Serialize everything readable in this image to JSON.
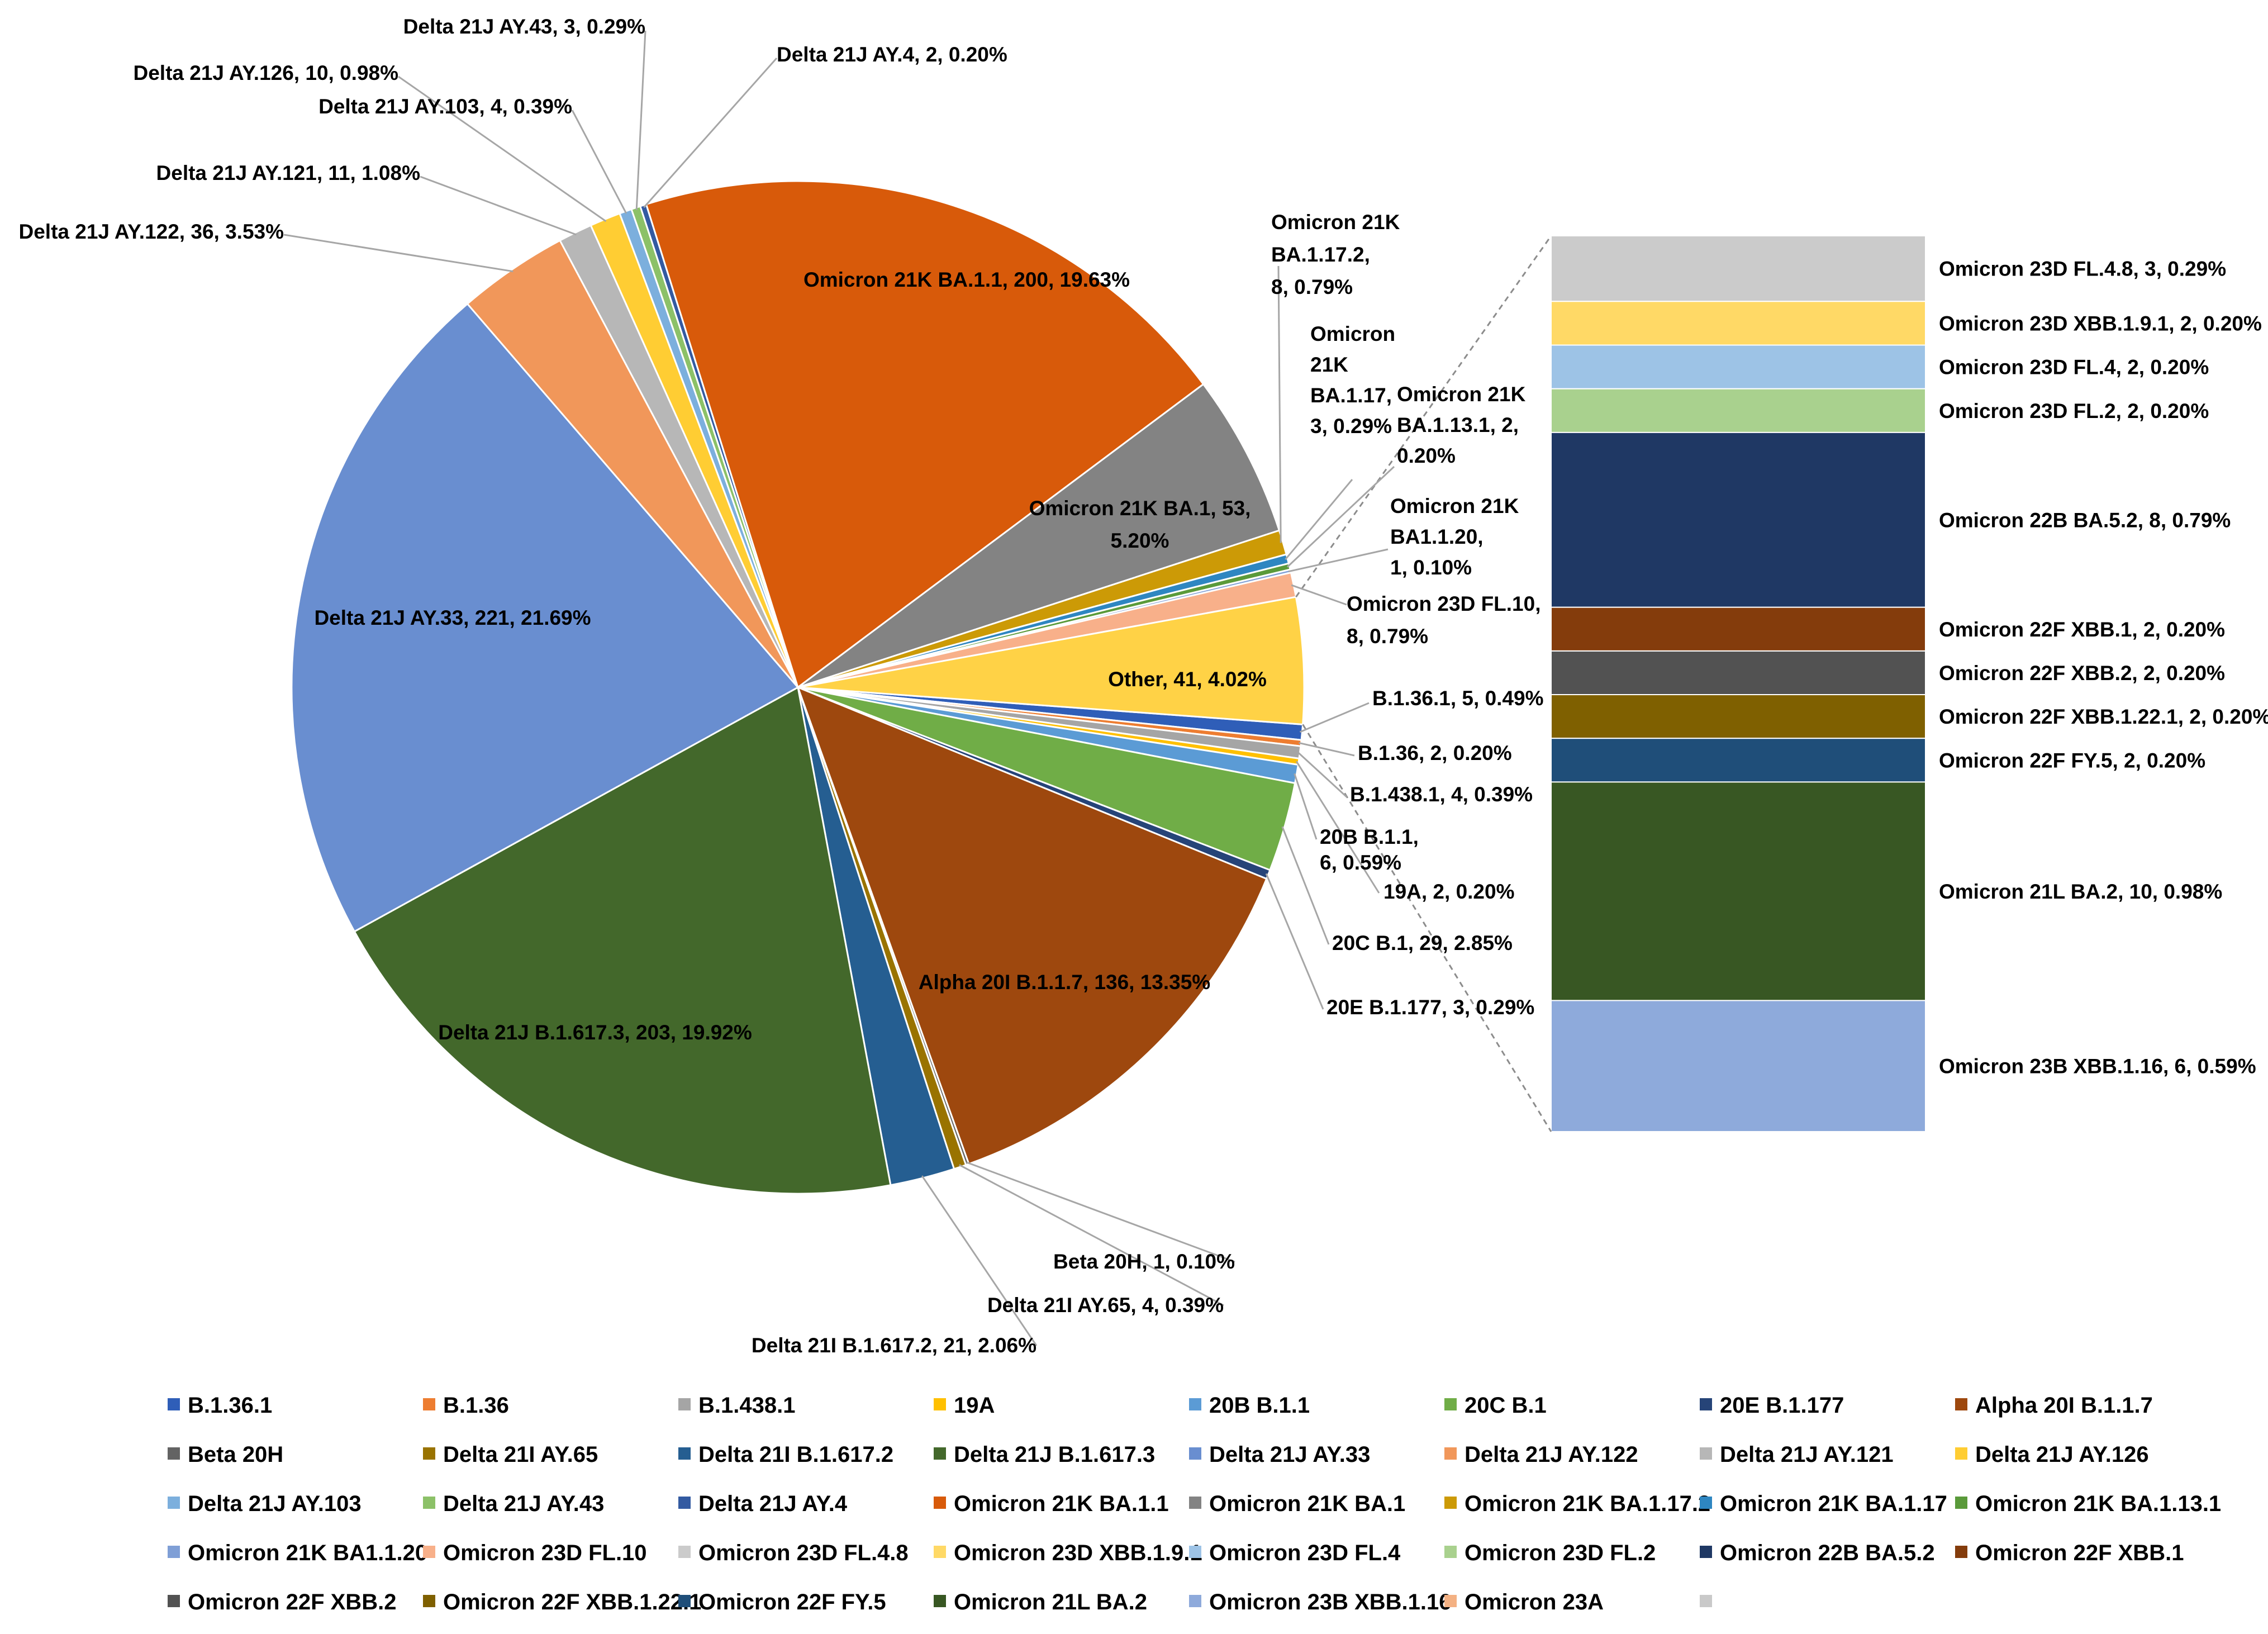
{
  "chart_data": {
    "type": "pie",
    "subtype": "pie-of-pie (bar of pie)",
    "title": "",
    "units": "count, percent",
    "slices": [
      {
        "name": "B.1.36.1",
        "value": 5,
        "pct": "0.49%",
        "label": "B.1.36.1, 5, 0.49%",
        "color": "#2f5eb8"
      },
      {
        "name": "B.1.36",
        "value": 2,
        "pct": "0.20%",
        "label": "B.1.36, 2, 0.20%",
        "color": "#ed7d31"
      },
      {
        "name": "B.1.438.1",
        "value": 4,
        "pct": "0.39%",
        "label": "B.1.438.1, 4, 0.39%",
        "color": "#a5a5a5"
      },
      {
        "name": "19A",
        "value": 2,
        "pct": "0.20%",
        "label": "19A, 2, 0.20%",
        "color": "#ffc000"
      },
      {
        "name": "20B B.1.1",
        "value": 6,
        "pct": "0.59%",
        "label": "20B B.1.1, 6, 0.59%",
        "color": "#5b9bd5"
      },
      {
        "name": "20C B.1",
        "value": 29,
        "pct": "2.85%",
        "label": "20C B.1, 29, 2.85%",
        "color": "#70ad47"
      },
      {
        "name": "20E B.1.177",
        "value": 3,
        "pct": "0.29%",
        "label": "20E B.1.177, 3, 0.29%",
        "color": "#264478"
      },
      {
        "name": "Alpha 20I B.1.1.7",
        "value": 136,
        "pct": "13.35%",
        "label": "Alpha 20I B.1.1.7, 136, 13.35%",
        "color": "#9e480e"
      },
      {
        "name": "Beta 20H",
        "value": 1,
        "pct": "0.10%",
        "label": "Beta 20H, 1, 0.10%",
        "color": "#636363"
      },
      {
        "name": "Delta 21I AY.65",
        "value": 4,
        "pct": "0.39%",
        "label": "Delta 21I AY.65, 4, 0.39%",
        "color": "#997300"
      },
      {
        "name": "Delta 21I B.1.617.2",
        "value": 21,
        "pct": "2.06%",
        "label": "Delta 21I B.1.617.2, 21, 2.06%",
        "color": "#255e91"
      },
      {
        "name": "Delta 21J B.1.617.3",
        "value": 203,
        "pct": "19.92%",
        "label": "Delta 21J B.1.617.3, 203, 19.92%",
        "color": "#43682b"
      },
      {
        "name": "Delta 21J AY.33",
        "value": 221,
        "pct": "21.69%",
        "label": "Delta 21J AY.33, 221, 21.69%",
        "color": "#698ed0"
      },
      {
        "name": "Delta 21J AY.122",
        "value": 36,
        "pct": "3.53%",
        "label": "Delta 21J AY.122, 36, 3.53%",
        "color": "#f1975a"
      },
      {
        "name": "Delta 21J AY.121",
        "value": 11,
        "pct": "1.08%",
        "label": "Delta 21J AY.121, 11, 1.08%",
        "color": "#b7b7b7"
      },
      {
        "name": "Delta 21J AY.126",
        "value": 10,
        "pct": "0.98%",
        "label": "Delta 21J AY.126, 10, 0.98%",
        "color": "#ffcd33"
      },
      {
        "name": "Delta 21J AY.103",
        "value": 4,
        "pct": "0.39%",
        "label": "Delta 21J AY.103, 4, 0.39%",
        "color": "#7cafdd"
      },
      {
        "name": "Delta 21J AY.43",
        "value": 3,
        "pct": "0.29%",
        "label": "Delta 21J AY.43, 3, 0.29%",
        "color": "#8cc168"
      },
      {
        "name": "Delta 21J AY.4",
        "value": 2,
        "pct": "0.20%",
        "label": "Delta 21J AY.4, 2, 0.20%",
        "color": "#335aa1"
      },
      {
        "name": "Omicron 21K BA.1.1",
        "value": 200,
        "pct": "19.63%",
        "label": "Omicron 21K BA.1.1, 200, 19.63%",
        "color": "#d85a0a"
      },
      {
        "name": "Omicron 21K BA.1",
        "value": 53,
        "pct": "5.20%",
        "label": "Omicron 21K BA.1, 53, 5.20%",
        "color": "#838383"
      },
      {
        "name": "Omicron 21K BA.1.17.2",
        "value": 8,
        "pct": "0.79%",
        "label": "Omicron 21K BA.1.17.2, 8, 0.79%",
        "color": "#cc9a06"
      },
      {
        "name": "Omicron 21K BA.1.17",
        "value": 3,
        "pct": "0.29%",
        "label": "Omicron 21K BA.1.17, 3, 0.29%",
        "color": "#2e86c1"
      },
      {
        "name": "Omicron 21K BA.1.13.1",
        "value": 2,
        "pct": "0.20%",
        "label": "Omicron 21K BA.1.13.1, 2, 0.20%",
        "color": "#5a9a3a"
      },
      {
        "name": "Omicron 21K BA1.1.20",
        "value": 1,
        "pct": "0.10%",
        "label": "Omicron 21K BA1.1.20, 1, 0.10%",
        "color": "#7f9fd6"
      },
      {
        "name": "Omicron 23D FL.10",
        "value": 8,
        "pct": "0.79%",
        "label": "Omicron 23D FL.10, 8, 0.79%",
        "color": "#f8b08a"
      },
      {
        "name": "Other",
        "value": 41,
        "pct": "4.02%",
        "label": "Other, 41, 4.02%",
        "color": "#ffd246"
      }
    ],
    "breakout": [
      {
        "name": "Omicron 23D FL.4.8",
        "value": 3,
        "pct": "0.29%",
        "label": "Omicron 23D FL.4.8, 3, 0.29%",
        "color": "#cbcbcb"
      },
      {
        "name": "Omicron 23D XBB.1.9.1",
        "value": 2,
        "pct": "0.20%",
        "label": "Omicron 23D XBB.1.9.1, 2, 0.20%",
        "color": "#ffd966"
      },
      {
        "name": "Omicron 23D FL.4",
        "value": 2,
        "pct": "0.20%",
        "label": "Omicron 23D FL.4, 2, 0.20%",
        "color": "#9dc3e6"
      },
      {
        "name": "Omicron 23D FL.2",
        "value": 2,
        "pct": "0.20%",
        "label": "Omicron 23D FL.2, 2, 0.20%",
        "color": "#a9d18e"
      },
      {
        "name": "Omicron 22B BA.5.2",
        "value": 8,
        "pct": "0.79%",
        "label": "Omicron 22B BA.5.2, 8, 0.79%",
        "color": "#1f3864"
      },
      {
        "name": "Omicron 22F XBB.1",
        "value": 2,
        "pct": "0.20%",
        "label": "Omicron 22F XBB.1, 2, 0.20%",
        "color": "#843c0c"
      },
      {
        "name": "Omicron 22F XBB.2",
        "value": 2,
        "pct": "0.20%",
        "label": "Omicron 22F XBB.2, 2, 0.20%",
        "color": "#525252"
      },
      {
        "name": "Omicron 22F XBB.1.22.1",
        "value": 2,
        "pct": "0.20%",
        "label": "Omicron 22F XBB.1.22.1, 2, 0.20%",
        "color": "#7f6000"
      },
      {
        "name": "Omicron 22F FY.5",
        "value": 2,
        "pct": "0.20%",
        "label": "Omicron 22F FY.5, 2, 0.20%",
        "color": "#1f4e79"
      },
      {
        "name": "Omicron 21L BA.2",
        "value": 10,
        "pct": "0.98%",
        "label": "Omicron 21L BA.2, 10, 0.98%",
        "color": "#385723"
      },
      {
        "name": "Omicron 23B XBB.1.16",
        "value": 6,
        "pct": "0.59%",
        "label": "Omicron 23B XBB.1.16, 6, 0.59%",
        "color": "#8eaadb"
      }
    ],
    "legend": [
      {
        "name": "B.1.36.1",
        "color": "#2f5eb8"
      },
      {
        "name": "B.1.36",
        "color": "#ed7d31"
      },
      {
        "name": "B.1.438.1",
        "color": "#a5a5a5"
      },
      {
        "name": "19A",
        "color": "#ffc000"
      },
      {
        "name": "20B B.1.1",
        "color": "#5b9bd5"
      },
      {
        "name": "20C B.1",
        "color": "#70ad47"
      },
      {
        "name": "20E B.1.177",
        "color": "#264478"
      },
      {
        "name": "Alpha 20I B.1.1.7",
        "color": "#9e480e"
      },
      {
        "name": "Beta 20H",
        "color": "#636363"
      },
      {
        "name": "Delta 21I AY.65",
        "color": "#997300"
      },
      {
        "name": "Delta 21I B.1.617.2",
        "color": "#255e91"
      },
      {
        "name": "Delta 21J B.1.617.3",
        "color": "#43682b"
      },
      {
        "name": "Delta 21J AY.33",
        "color": "#698ed0"
      },
      {
        "name": "Delta 21J AY.122",
        "color": "#f1975a"
      },
      {
        "name": "Delta 21J AY.121",
        "color": "#b7b7b7"
      },
      {
        "name": "Delta 21J AY.126",
        "color": "#ffcd33"
      },
      {
        "name": "Delta 21J AY.103",
        "color": "#7cafdd"
      },
      {
        "name": "Delta 21J AY.43",
        "color": "#8cc168"
      },
      {
        "name": "Delta 21J AY.4",
        "color": "#335aa1"
      },
      {
        "name": "Omicron 21K BA.1.1",
        "color": "#d85a0a"
      },
      {
        "name": "Omicron 21K BA.1",
        "color": "#838383"
      },
      {
        "name": "Omicron 21K BA.1.17.2",
        "color": "#cc9a06"
      },
      {
        "name": "Omicron 21K BA.1.17",
        "color": "#2e86c1"
      },
      {
        "name": "Omicron 21K BA.1.13.1",
        "color": "#5a9a3a"
      },
      {
        "name": "Omicron 21K BA1.1.20",
        "color": "#7f9fd6"
      },
      {
        "name": "Omicron 23D FL.10",
        "color": "#f8b08a"
      },
      {
        "name": "Omicron 23D FL.4.8",
        "color": "#cbcbcb"
      },
      {
        "name": "Omicron 23D XBB.1.9.1",
        "color": "#ffd966"
      },
      {
        "name": "Omicron 23D FL.4",
        "color": "#9dc3e6"
      },
      {
        "name": "Omicron 23D FL.2",
        "color": "#a9d18e"
      },
      {
        "name": "Omicron 22B BA.5.2",
        "color": "#1f3864"
      },
      {
        "name": "Omicron 22F XBB.1",
        "color": "#843c0c"
      },
      {
        "name": "Omicron 22F XBB.2",
        "color": "#525252"
      },
      {
        "name": "Omicron 22F XBB.1.22.1",
        "color": "#7f6000"
      },
      {
        "name": "Omicron 22F FY.5",
        "color": "#1f4e79"
      },
      {
        "name": "Omicron 21L BA.2",
        "color": "#385723"
      },
      {
        "name": "Omicron 23B XBB.1.16",
        "color": "#8eaadb"
      },
      {
        "name": "Omicron 23A",
        "color": "#f4b183"
      },
      {
        "name": "",
        "color": "#c9c9c9"
      }
    ]
  }
}
